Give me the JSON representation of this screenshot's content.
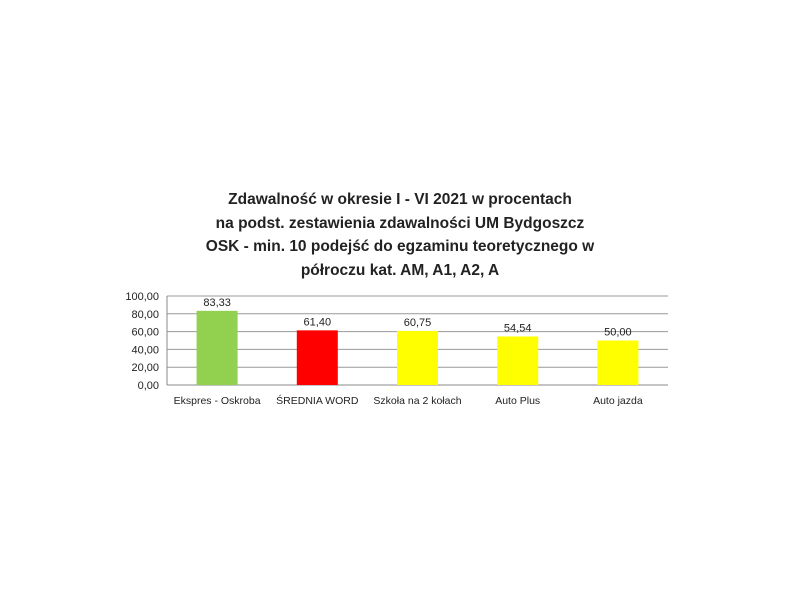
{
  "chart_data": {
    "type": "bar",
    "title": [
      "Zdawalność  w okresie I - VI 2021 w procentach",
      "na podst. zestawienia zdawalności  UM Bydgoszcz",
      "OSK - min. 10 podejść do egzaminu teoretycznego w",
      "półroczu kat. AM, A1, A2, A"
    ],
    "categories": [
      "Ekspres - Oskroba",
      "ŚREDNIA WORD",
      "Szkoła na 2 kołach",
      "Auto Plus",
      "Auto jazda"
    ],
    "values": [
      83.33,
      61.4,
      60.75,
      54.54,
      50.0
    ],
    "data_labels": [
      "83,33",
      "61,40",
      "60,75",
      "54,54",
      "50,00"
    ],
    "bar_colors": [
      "#92d050",
      "#ff0000",
      "#ffff00",
      "#ffff00",
      "#ffff00"
    ],
    "ylim": [
      0,
      100
    ],
    "yticks": [
      "0,00",
      "20,00",
      "40,00",
      "60,00",
      "80,00",
      "100,00"
    ],
    "xlabel": "",
    "ylabel": "",
    "grid": true,
    "legend": "none"
  }
}
